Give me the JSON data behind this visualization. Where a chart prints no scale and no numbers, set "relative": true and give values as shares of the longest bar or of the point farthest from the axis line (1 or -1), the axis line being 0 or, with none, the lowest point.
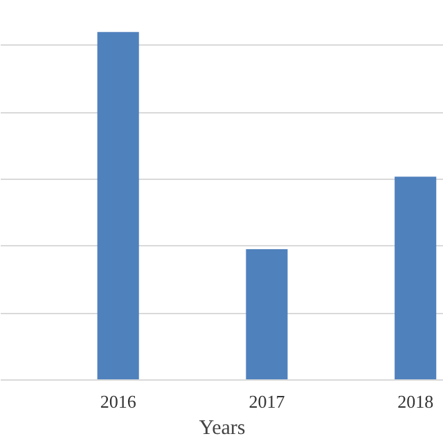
{
  "chart_data": {
    "type": "bar",
    "xlabel": "Years",
    "categories": [
      "2016",
      "2017",
      "2018"
    ],
    "values": [
      1,
      0.376,
      0.584
    ],
    "color": "#4f81bd",
    "relative": true,
    "grid": "y"
  }
}
